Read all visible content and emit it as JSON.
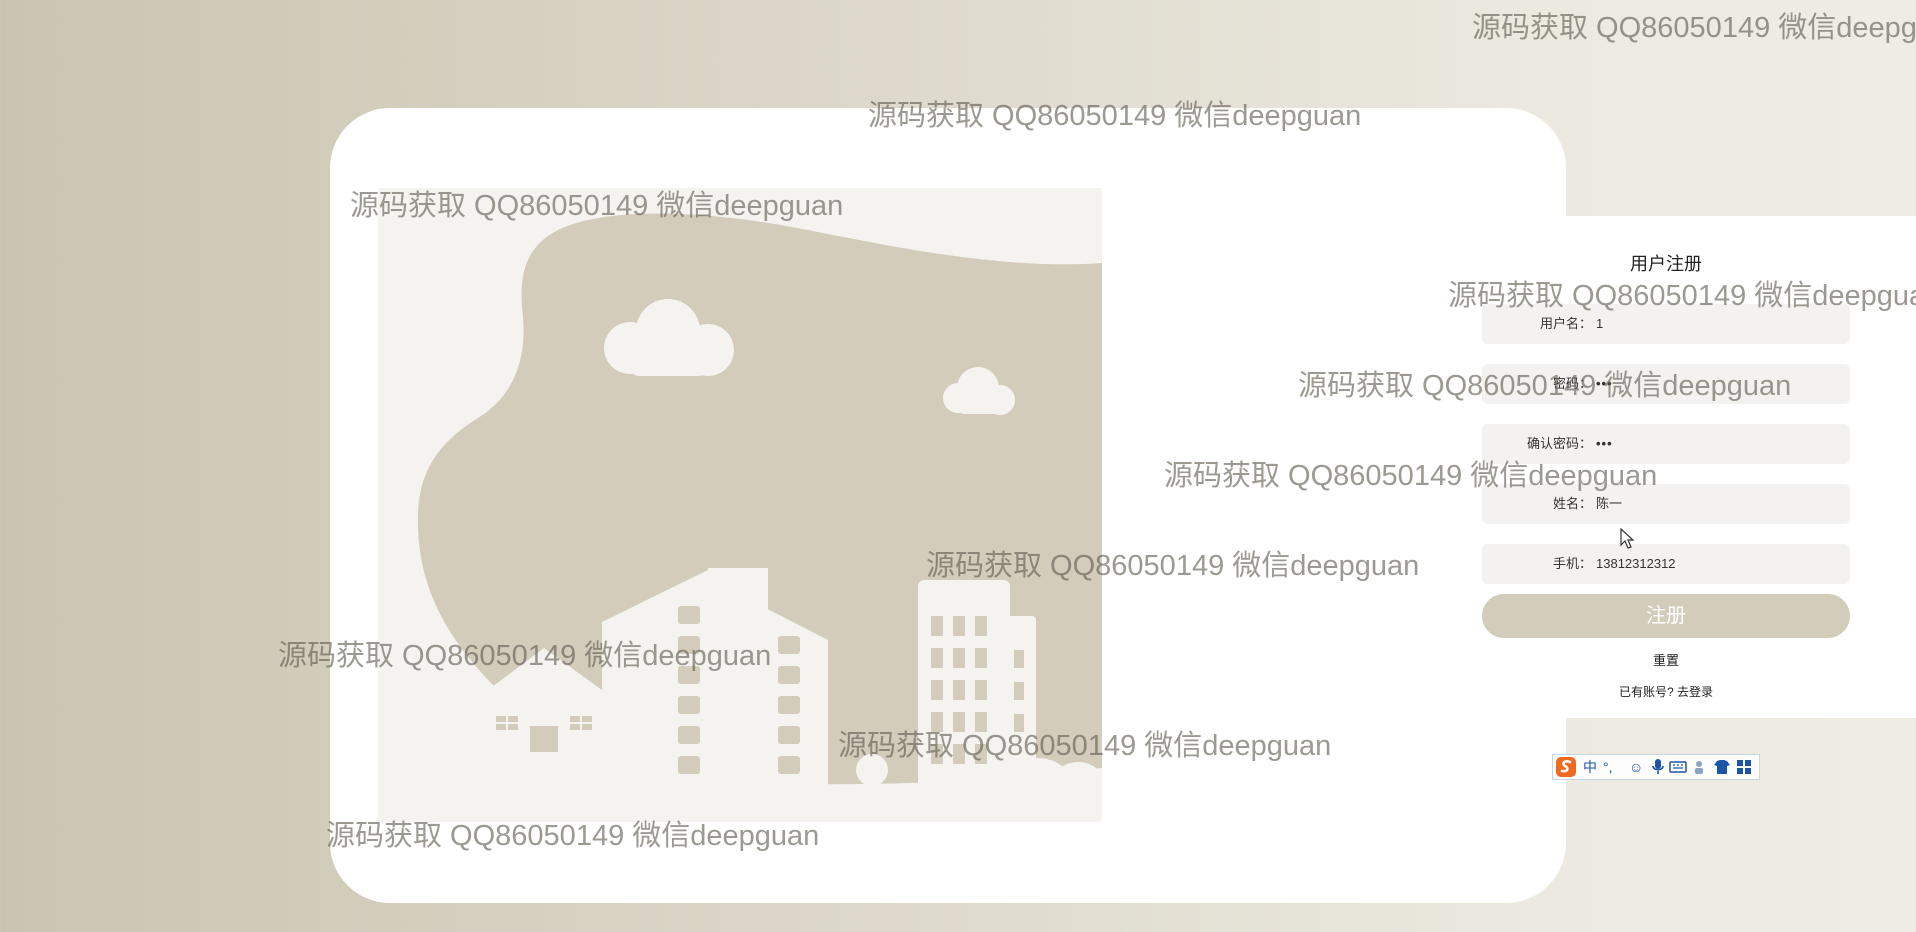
{
  "register": {
    "title": "用户注册",
    "fields": [
      {
        "label": "用户名：",
        "value": "1"
      },
      {
        "label": "密码：",
        "value": "•••"
      },
      {
        "label": "确认密码：",
        "value": "•••"
      },
      {
        "label": "姓名：",
        "value": "陈一"
      },
      {
        "label": "手机：",
        "value": "13812312312"
      }
    ],
    "submit_label": "注册",
    "reset_label": "重置",
    "has_account_text": "已有账号?",
    "login_link_label": "去登录"
  },
  "watermark_text": "源码获取 QQ86050149 微信deepguan",
  "ime_toolbar": {
    "logo_icon": "sogou-s-icon",
    "mode_label": "中",
    "punct_label": "°,",
    "icons": [
      "emoji-icon",
      "microphone-icon",
      "keyboard-icon",
      "skin-icon",
      "shirt-icon",
      "grid-menu-icon"
    ]
  },
  "colors": {
    "accent": "#d3ccbb",
    "illustration_bg": "#f4f3ef",
    "illustration_shape": "#d3ccbb"
  }
}
